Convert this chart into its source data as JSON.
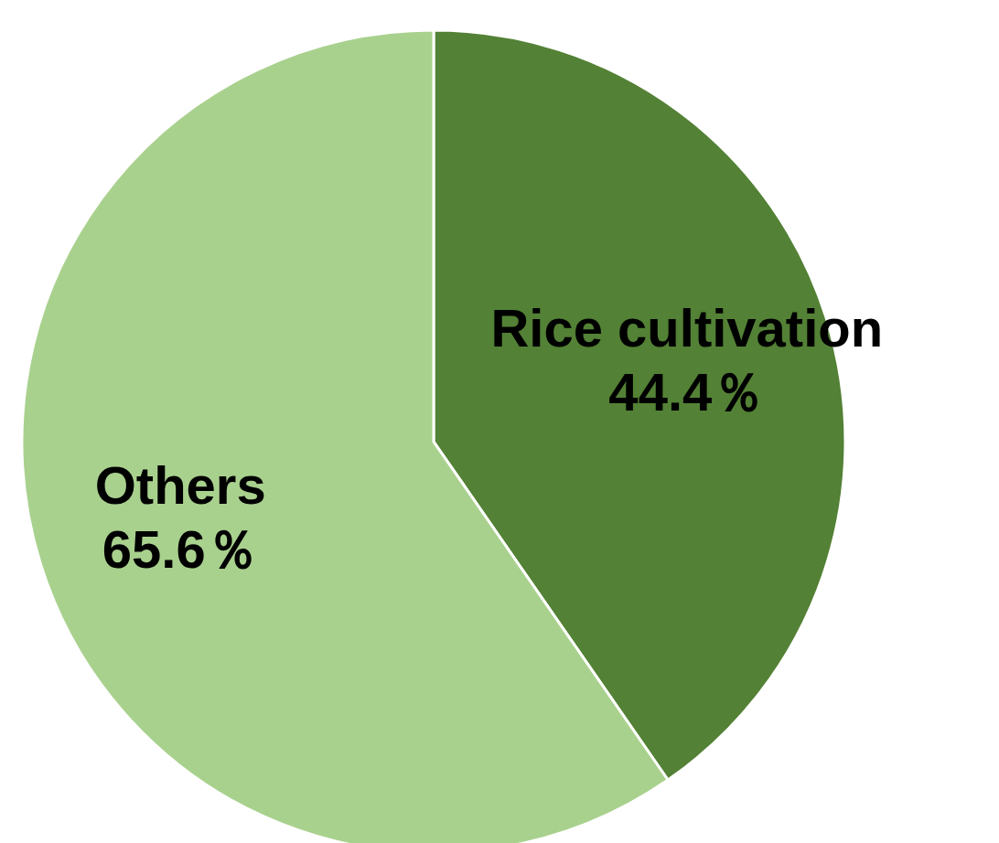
{
  "chart_data": {
    "type": "pie",
    "categories": [
      "Rice cultivation",
      "Others"
    ],
    "values": [
      44.4,
      65.6
    ],
    "colors": [
      "#538135",
      "#a9d18e"
    ],
    "value_labels": [
      "44.4％",
      "65.6％"
    ],
    "legend": false
  }
}
